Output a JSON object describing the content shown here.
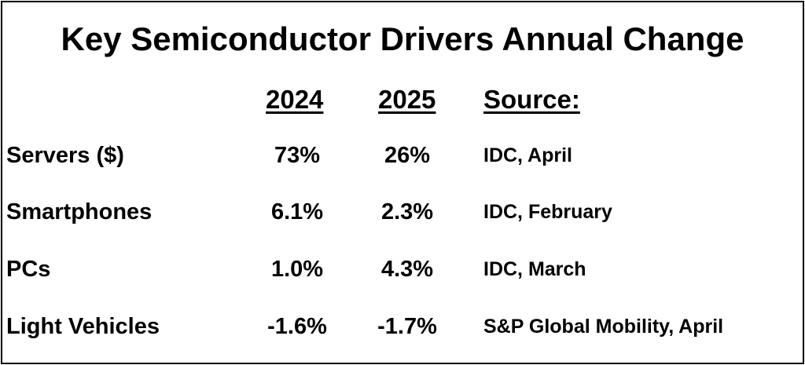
{
  "chart_data": {
    "type": "table",
    "title": "Key Semiconductor Drivers Annual Change",
    "columns": [
      "2024",
      "2025",
      "Source:"
    ],
    "rows": [
      {
        "label": "Servers ($)",
        "v2024": "73%",
        "v2025": "26%",
        "source": "IDC, April"
      },
      {
        "label": "Smartphones",
        "v2024": "6.1%",
        "v2025": "2.3%",
        "source": "IDC, February"
      },
      {
        "label": "PCs",
        "v2024": "1.0%",
        "v2025": "4.3%",
        "source": "IDC, March"
      },
      {
        "label": "Light Vehicles",
        "v2024": "-1.6%",
        "v2025": "-1.7%",
        "source": "S&P Global Mobility, April"
      }
    ]
  }
}
